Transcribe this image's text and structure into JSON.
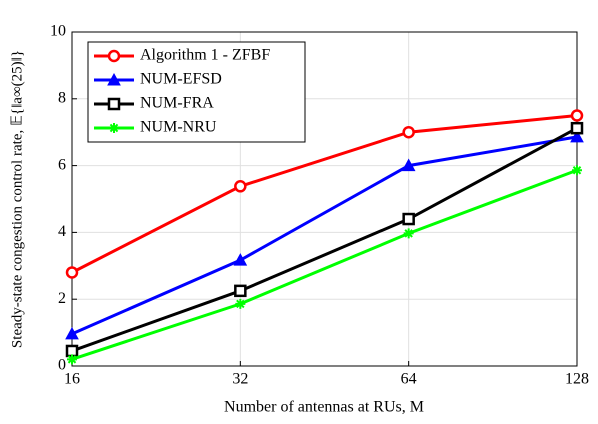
{
  "chart_data": {
    "type": "line",
    "x": [
      16,
      32,
      64,
      128
    ],
    "xlim": [
      16,
      128
    ],
    "xticks": [
      16,
      32,
      64,
      128
    ],
    "xscale": "log",
    "ylim": [
      0,
      10
    ],
    "yticks": [
      0,
      2,
      4,
      6,
      8,
      10
    ],
    "grid": true,
    "legend": "upper left",
    "xlabel": "Number of antennas at RUs, M",
    "ylabel": "Steady-state congestion control rate, 𝔼{‖a∞(25)‖}",
    "series": [
      {
        "name": "Algorithm 1 - ZFBF",
        "color": "#ff0000",
        "marker": "circle",
        "values": [
          2.8,
          5.38,
          7.0,
          7.5
        ]
      },
      {
        "name": "NUM-EFSD",
        "color": "#0000ff",
        "marker": "triangle",
        "values": [
          0.96,
          3.17,
          6.0,
          6.86
        ]
      },
      {
        "name": "NUM-FRA",
        "color": "#000000",
        "marker": "square",
        "values": [
          0.45,
          2.25,
          4.4,
          7.12
        ]
      },
      {
        "name": "NUM-NRU",
        "color": "#00ff00",
        "marker": "star",
        "values": [
          0.2,
          1.86,
          3.97,
          5.86
        ]
      }
    ]
  }
}
